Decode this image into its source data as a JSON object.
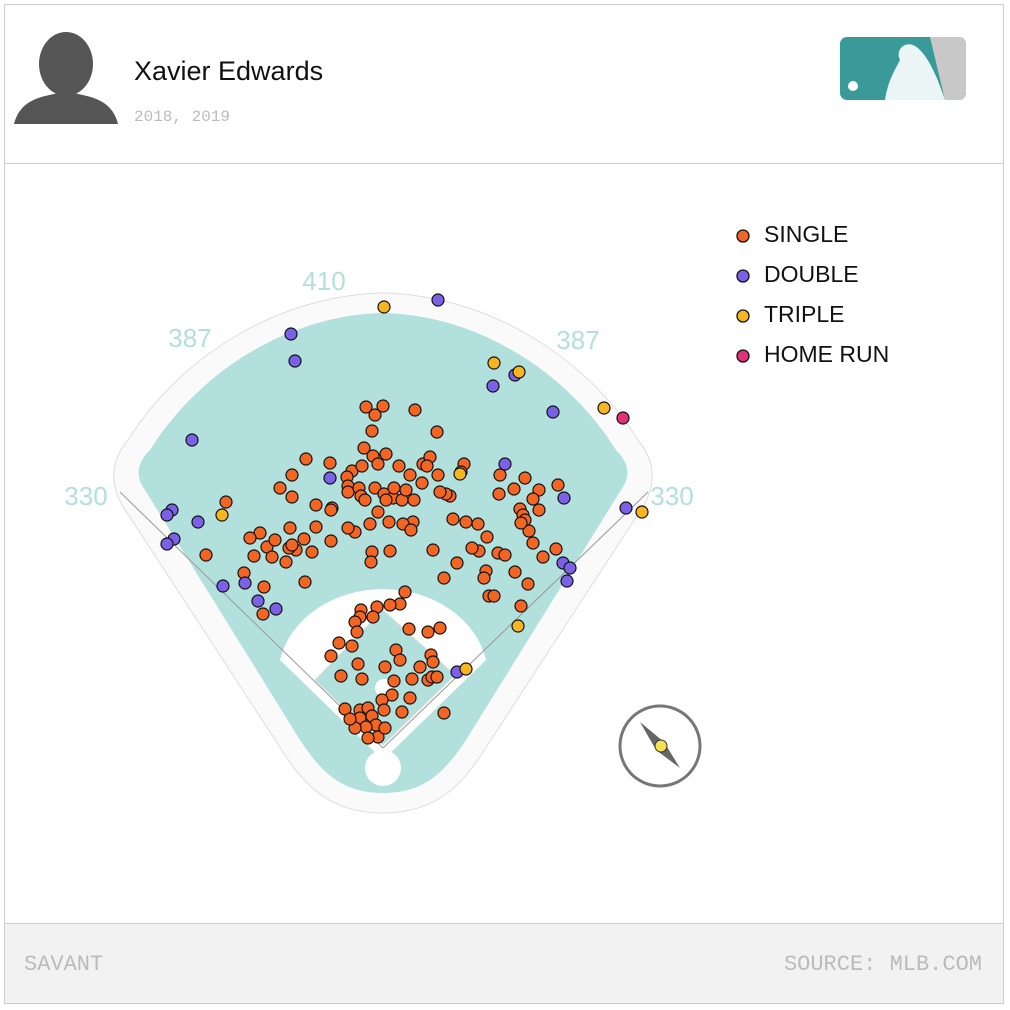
{
  "header": {
    "player": "Xavier Edwards",
    "seasons": "2018, 2019"
  },
  "footer": {
    "brand": "SAVANT",
    "source": "SOURCE: MLB.COM"
  },
  "chart_data": {
    "type": "scatter",
    "distances": [
      330,
      387,
      410,
      387,
      330
    ],
    "series": [
      {
        "name": "SINGLE",
        "color": "#f26522",
        "x": [
          -17,
          0,
          -8,
          32,
          -11,
          54,
          -19,
          3,
          -10,
          -5,
          -31,
          -21,
          16,
          40,
          47,
          81,
          78,
          55,
          -77,
          -53,
          -91,
          -103,
          -91,
          -67,
          -51,
          -36,
          -35,
          -35,
          -24,
          -22,
          -8,
          1,
          -18,
          -5,
          10,
          19,
          23,
          31,
          11,
          3,
          30,
          20,
          6,
          -13,
          -28,
          -35,
          -52,
          -52,
          -67,
          -79,
          -93,
          -87,
          -97,
          -116,
          -111,
          -123,
          -133,
          -129,
          -139,
          -119,
          -78,
          -94,
          -71,
          -177,
          -157,
          -120,
          -11,
          7,
          -12,
          28,
          50,
          70,
          83,
          95,
          104,
          96,
          89,
          74,
          61,
          103,
          101,
          106,
          111,
          115,
          122,
          132,
          145,
          138,
          160,
          173,
          150,
          146,
          156,
          137,
          140,
          142,
          138,
          156,
          175,
          150,
          131,
          116,
          117,
          142,
          67,
          63,
          39,
          57,
          44,
          27,
          -91,
          -108,
          22,
          17,
          7,
          -6,
          -22,
          -23,
          -10,
          -28,
          -26,
          -31,
          -44,
          -52,
          -25,
          -42,
          -21,
          2,
          13,
          17,
          26,
          45,
          57,
          48,
          50,
          37,
          45,
          49,
          54,
          29,
          11,
          9,
          -1,
          27,
          19,
          61,
          1,
          -38,
          -23,
          -23,
          -15,
          -11,
          -7,
          -17,
          -5,
          -15,
          2,
          -28,
          -33
        ],
        "y": [
          338,
          339,
          330,
          335,
          314,
          313,
          297,
          291,
          289,
          281,
          274,
          279,
          279,
          281,
          288,
          281,
          273,
          270,
          286,
          282,
          270,
          257,
          248,
          240,
          237,
          268,
          259,
          253,
          257,
          249,
          257,
          251,
          245,
          233,
          247,
          245,
          255,
          245,
          257,
          245,
          223,
          221,
          223,
          221,
          213,
          217,
          235,
          204,
          218,
          206,
          217,
          195,
          183,
          198,
          188,
          212,
          207,
          189,
          172,
          158,
          163,
          197,
          193,
          190,
          243,
          131,
          193,
          194,
          183,
          215,
          195,
          226,
          223,
          221,
          208,
          194,
          197,
          182,
          167,
          174,
          167,
          149,
          149,
          192,
          190,
          173,
          161,
          139,
          188,
          196,
          202,
          214,
          235,
          236,
          230,
          225,
          222,
          255,
          260,
          246,
          256,
          251,
          270,
          267,
          249,
          251,
          262,
          253,
          279,
          270,
          200,
          205,
          153,
          141,
          140,
          138,
          135,
          128,
          128,
          123,
          113,
          99,
          102,
          89,
          81,
          69,
          66,
          78,
          95,
          85,
          116,
          113,
          117,
          90,
          83,
          78,
          65,
          68,
          68,
          66,
          64,
          50,
          45,
          47,
          33,
          32,
          35,
          36,
          35,
          27,
          37,
          29,
          20,
          18,
          8,
          7,
          17,
          17,
          26
        ]
      },
      {
        "name": "DOUBLE",
        "color": "#7b61e8",
        "x": [
          55,
          -92,
          -88,
          110,
          132,
          170,
          -191,
          -53,
          122,
          181,
          243,
          -211,
          -216,
          -185,
          -209,
          -216,
          180,
          187,
          184,
          -138,
          -160,
          -125,
          -107,
          74
        ],
        "y": [
          445,
          411,
          384,
          359,
          370,
          333,
          305,
          267,
          281,
          247,
          237,
          235,
          230,
          223,
          206,
          201,
          182,
          177,
          164,
          162,
          159,
          144,
          136,
          73
        ]
      },
      {
        "name": "TRIPLE",
        "color": "#f7b51e",
        "x": [
          1,
          111,
          136,
          221,
          259,
          -161,
          77,
          135,
          83
        ],
        "y": [
          438,
          382,
          373,
          337,
          233,
          230,
          271,
          119,
          76
        ]
      },
      {
        "name": "HOME RUN",
        "color": "#e3307a",
        "x": [
          240
        ],
        "y": [
          327
        ]
      }
    ]
  }
}
